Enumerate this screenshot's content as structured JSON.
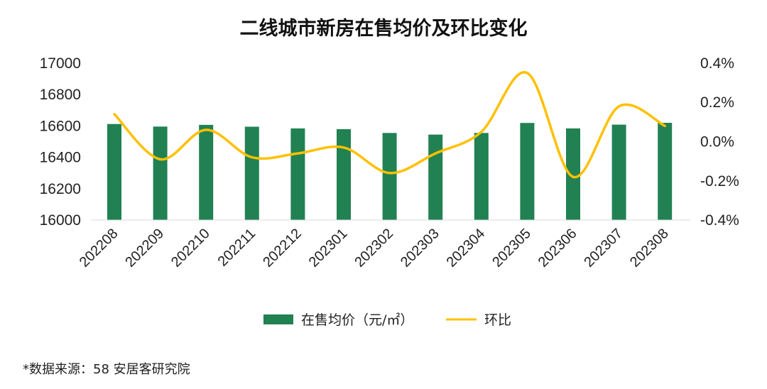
{
  "chart_data": {
    "type": "bar+line",
    "title": "二线城市新房在售均价及环比变化",
    "categories": [
      "202208",
      "202209",
      "202210",
      "202211",
      "202212",
      "202301",
      "202302",
      "202303",
      "202304",
      "202305",
      "202306",
      "202307",
      "202308"
    ],
    "series": [
      {
        "name": "在售均价（元/㎡）",
        "type": "bar",
        "axis": "left",
        "color": "#218152",
        "values": [
          16612,
          16596,
          16607,
          16595,
          16584,
          16579,
          16555,
          16545,
          16555,
          16619,
          16584,
          16608,
          16620
        ]
      },
      {
        "name": "环比",
        "type": "line",
        "axis": "right",
        "color": "#FFC000",
        "values": [
          0.14,
          -0.09,
          0.06,
          -0.08,
          -0.06,
          -0.03,
          -0.16,
          -0.06,
          0.05,
          0.35,
          -0.18,
          0.18,
          0.08
        ]
      }
    ],
    "y_left": {
      "range": [
        16000,
        17000
      ],
      "ticks": [
        "16000",
        "16200",
        "16400",
        "16600",
        "16800",
        "17000"
      ]
    },
    "y_right": {
      "range": [
        -0.4,
        0.4
      ],
      "ticks": [
        "-0.4%",
        "-0.2%",
        "0.0%",
        "0.2%",
        "0.4%"
      ]
    },
    "legend_position": "bottom",
    "grid": false
  },
  "source_note": "*数据来源：58 安居客研究院"
}
